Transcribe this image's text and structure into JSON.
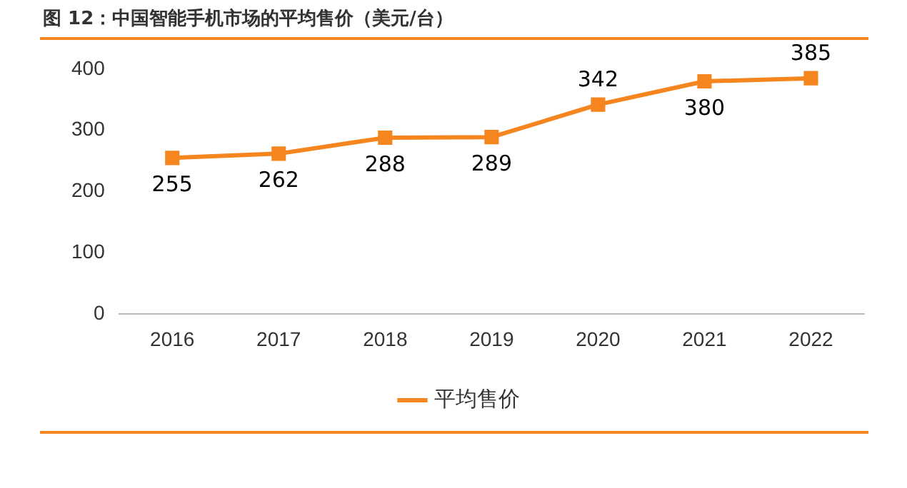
{
  "chart_data": {
    "type": "line",
    "title": "图 12：中国智能手机市场的平均售价（美元/台）",
    "categories": [
      "2016",
      "2017",
      "2018",
      "2019",
      "2020",
      "2021",
      "2022"
    ],
    "series": [
      {
        "name": "平均售价",
        "color": "#f5861f",
        "values": [
          255,
          262,
          288,
          289,
          342,
          380,
          385
        ]
      }
    ],
    "ylim": [
      0,
      400
    ],
    "yticks": [
      0,
      100,
      200,
      300,
      400
    ],
    "grid": false,
    "legend": "bottom",
    "marker": "square",
    "line_style": "solid",
    "data_labels": true
  }
}
